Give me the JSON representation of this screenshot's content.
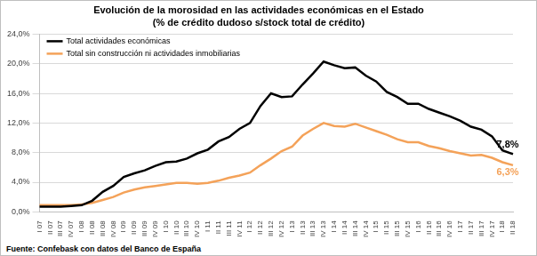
{
  "chart_data": {
    "type": "line",
    "title": "Evolución de la morosidad en las actividades económicas en el Estado",
    "subtitle": "(% de crédito dudoso s/stock total de crédito)",
    "source": "Fuente: Confebask con datos del Banco de España",
    "categories": [
      "I 07",
      "II 07",
      "III 07",
      "IV 07",
      "I 08",
      "II 08",
      "III 08",
      "IV 08",
      "I 09",
      "II 09",
      "III 09",
      "IV 09",
      "I 10",
      "II 10",
      "III 10",
      "IV 10",
      "I 11",
      "II 11",
      "III 11",
      "IV 11",
      "I 12",
      "II 12",
      "III 12",
      "IV 12",
      "I 13",
      "II 13",
      "III 13",
      "IV 13",
      "I 14",
      "II 14",
      "III 14",
      "IV 14",
      "I 15",
      "II 15",
      "III 15",
      "IV 15",
      "I 16",
      "II 16",
      "III 16",
      "IV 16",
      "I 17",
      "II 17",
      "III 17",
      "IV 17",
      "I 18",
      "II 18"
    ],
    "series": [
      {
        "name": "Total actividades económicas",
        "color": "#000000",
        "values": [
          0.7,
          0.7,
          0.7,
          0.8,
          0.9,
          1.5,
          2.7,
          3.5,
          4.7,
          5.2,
          5.6,
          6.2,
          6.7,
          6.8,
          7.2,
          7.9,
          8.4,
          9.5,
          10.1,
          11.2,
          12.0,
          14.3,
          16.0,
          15.5,
          15.6,
          17.2,
          18.7,
          20.3,
          19.8,
          19.4,
          19.5,
          18.4,
          17.6,
          16.2,
          15.5,
          14.6,
          14.6,
          13.9,
          13.4,
          12.9,
          12.3,
          11.5,
          11.1,
          10.2,
          8.3,
          7.8
        ]
      },
      {
        "name": "Total sin construcción ni actividades inmobiliarias",
        "color": "#f4a259",
        "values": [
          0.9,
          0.9,
          0.9,
          0.9,
          1.0,
          1.2,
          1.6,
          2.0,
          2.6,
          3.0,
          3.3,
          3.5,
          3.7,
          3.9,
          3.9,
          3.8,
          3.9,
          4.2,
          4.6,
          4.9,
          5.3,
          6.3,
          7.2,
          8.2,
          8.8,
          10.3,
          11.2,
          12.0,
          11.6,
          11.5,
          11.9,
          11.4,
          10.9,
          10.4,
          9.8,
          9.4,
          9.4,
          8.9,
          8.6,
          8.2,
          7.9,
          7.6,
          7.7,
          7.3,
          6.7,
          6.3
        ]
      }
    ],
    "annotations": [
      {
        "series": "Total actividades económicas",
        "category": "II 18",
        "value": 7.8,
        "text": "7,8%"
      },
      {
        "series": "Total sin construcción ni actividades inmobiliarias",
        "category": "II 18",
        "value": 6.3,
        "text": "6,3%"
      }
    ],
    "ylim": [
      0,
      24
    ],
    "yticks": [
      {
        "value": 0,
        "label": "0,0%"
      },
      {
        "value": 4,
        "label": "4,0%"
      },
      {
        "value": 8,
        "label": "8,0%"
      },
      {
        "value": 12,
        "label": "12,0%"
      },
      {
        "value": 16,
        "label": "16,0%"
      },
      {
        "value": 20,
        "label": "20,0%"
      },
      {
        "value": 24,
        "label": "24,0%"
      }
    ],
    "grid": true,
    "legend": "upper left"
  }
}
